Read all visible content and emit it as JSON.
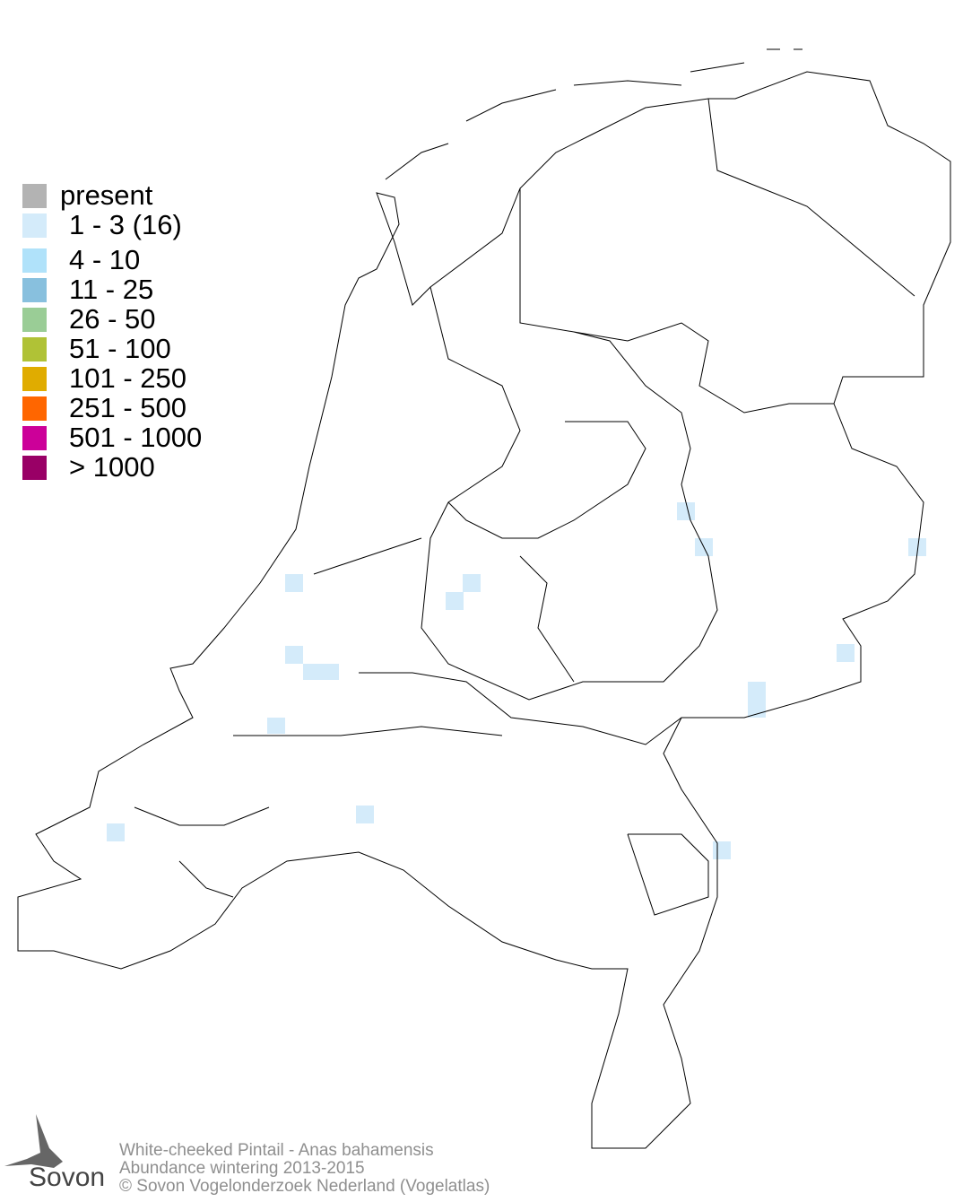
{
  "legend": {
    "items": [
      {
        "label": "present",
        "color": "#b3b3b3"
      },
      {
        "label": "1 - 3 (16)",
        "color": "#d4ebfa"
      },
      {
        "label": "4 - 10",
        "color": "#b0e2fa"
      },
      {
        "label": "11 - 25",
        "color": "#88c0de"
      },
      {
        "label": "26 - 50",
        "color": "#9acd96"
      },
      {
        "label": "51 - 100",
        "color": "#b0c236"
      },
      {
        "label": "101 - 250",
        "color": "#e0ac00"
      },
      {
        "label": "251 - 500",
        "color": "#ff6600"
      },
      {
        "label": "501 - 1000",
        "color": "#cc0099"
      },
      {
        "label": "> 1000",
        "color": "#990066"
      }
    ]
  },
  "map": {
    "cell_count": 16,
    "cell_category": "1 - 3 (16)",
    "cell_color": "#d4ebfa"
  },
  "credits": {
    "species": "White-cheeked Pintail - Anas bahamensis",
    "subtitle": "Abundance wintering 2013-2015",
    "copyright": "© Sovon Vogelonderzoek Nederland (Vogelatlas)"
  },
  "logo": {
    "text": "Sovon"
  }
}
